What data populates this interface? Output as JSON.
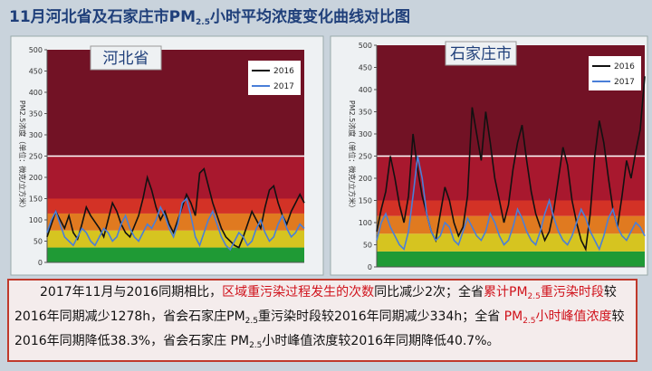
{
  "header": {
    "title": [
      {
        "text": "11月河北省及石家庄市PM",
        "sub": false
      },
      {
        "text": "2.5",
        "sub": true
      },
      {
        "text": "小时平均浓度变化曲线对比图",
        "sub": false
      }
    ]
  },
  "chart_data": [
    {
      "type": "line",
      "label": "河北省",
      "y_label": "PM2.5浓度（单位：微克/立方米）",
      "ylim": [
        0,
        500
      ],
      "yticks": [
        0,
        50,
        100,
        150,
        200,
        250,
        300,
        350,
        400,
        450,
        500
      ],
      "legend": "upper right",
      "bands": [
        {
          "from": 0,
          "to": 35,
          "color": "#1f9a35"
        },
        {
          "from": 35,
          "to": 75,
          "color": "#d6c420"
        },
        {
          "from": 75,
          "to": 115,
          "color": "#e07a20"
        },
        {
          "from": 115,
          "to": 150,
          "color": "#d33226"
        },
        {
          "from": 150,
          "to": 250,
          "color": "#a8182e"
        },
        {
          "from": 250,
          "to": 500,
          "color": "#721225"
        }
      ],
      "series": [
        {
          "name": "2016",
          "color": "#111111",
          "values": [
            60,
            90,
            120,
            100,
            80,
            110,
            70,
            55,
            90,
            130,
            110,
            95,
            80,
            60,
            100,
            140,
            120,
            90,
            70,
            60,
            85,
            110,
            150,
            200,
            170,
            130,
            100,
            120,
            90,
            70,
            100,
            130,
            160,
            140,
            110,
            210,
            220,
            180,
            140,
            110,
            80,
            60,
            50,
            40,
            35,
            60,
            90,
            120,
            100,
            80,
            130,
            170,
            180,
            140,
            110,
            90,
            120,
            140,
            160,
            140
          ]
        },
        {
          "name": "2017",
          "color": "#4a7fd8",
          "values": [
            70,
            100,
            120,
            90,
            60,
            50,
            40,
            60,
            80,
            70,
            50,
            40,
            60,
            80,
            70,
            50,
            60,
            90,
            110,
            80,
            60,
            50,
            70,
            90,
            80,
            100,
            130,
            110,
            80,
            60,
            90,
            140,
            150,
            110,
            60,
            40,
            70,
            100,
            120,
            90,
            60,
            40,
            30,
            50,
            70,
            60,
            40,
            50,
            80,
            100,
            70,
            50,
            60,
            90,
            110,
            80,
            60,
            70,
            90,
            80
          ]
        }
      ]
    },
    {
      "type": "line",
      "label": "石家庄市",
      "y_label": "PM2.5浓度（单位：微克/立方米）",
      "ylim": [
        0,
        500
      ],
      "yticks": [
        0,
        50,
        100,
        150,
        200,
        250,
        300,
        350,
        400,
        450,
        500
      ],
      "legend": "upper right",
      "bands": [
        {
          "from": 0,
          "to": 35,
          "color": "#1f9a35"
        },
        {
          "from": 35,
          "to": 75,
          "color": "#d6c420"
        },
        {
          "from": 75,
          "to": 115,
          "color": "#e07a20"
        },
        {
          "from": 115,
          "to": 150,
          "color": "#d33226"
        },
        {
          "from": 150,
          "to": 250,
          "color": "#a8182e"
        },
        {
          "from": 250,
          "to": 500,
          "color": "#721225"
        }
      ],
      "series": [
        {
          "name": "2016",
          "color": "#111111",
          "values": [
            80,
            130,
            170,
            250,
            200,
            140,
            100,
            160,
            300,
            220,
            160,
            120,
            80,
            60,
            120,
            180,
            150,
            100,
            70,
            90,
            160,
            360,
            300,
            240,
            350,
            280,
            200,
            150,
            100,
            140,
            220,
            280,
            320,
            240,
            170,
            120,
            90,
            60,
            80,
            130,
            200,
            270,
            230,
            150,
            100,
            60,
            40,
            120,
            250,
            330,
            280,
            200,
            130,
            90,
            160,
            240,
            200,
            260,
            310,
            430
          ]
        },
        {
          "name": "2017",
          "color": "#4a7fd8",
          "values": [
            60,
            100,
            120,
            90,
            70,
            50,
            40,
            80,
            160,
            250,
            200,
            120,
            80,
            60,
            70,
            100,
            90,
            60,
            50,
            80,
            110,
            90,
            70,
            60,
            80,
            120,
            100,
            70,
            50,
            60,
            90,
            130,
            110,
            80,
            60,
            50,
            80,
            120,
            150,
            110,
            80,
            60,
            50,
            70,
            100,
            130,
            110,
            80,
            60,
            40,
            70,
            110,
            130,
            90,
            70,
            60,
            80,
            100,
            90,
            70
          ]
        }
      ]
    }
  ],
  "note": {
    "runs": [
      {
        "text": "2017年11月与2016同期相比，",
        "color": "#111111",
        "sub": false
      },
      {
        "text": "区域重污染过程发生的次数",
        "color": "#d0121b",
        "sub": false
      },
      {
        "text": "同比减少2次；全省",
        "color": "#111111",
        "sub": false
      },
      {
        "text": "累计PM",
        "color": "#d0121b",
        "sub": false
      },
      {
        "text": "2.5",
        "color": "#d0121b",
        "sub": true
      },
      {
        "text": "重污染时段",
        "color": "#d0121b",
        "sub": false
      },
      {
        "text": "较2016年同期减少1278h，省会石家庄PM",
        "color": "#111111",
        "sub": false
      },
      {
        "text": "2.5",
        "color": "#111111",
        "sub": true
      },
      {
        "text": "重污染时段较2016年同期减少334h；全省 ",
        "color": "#111111",
        "sub": false
      },
      {
        "text": "PM",
        "color": "#d0121b",
        "sub": false
      },
      {
        "text": "2.5",
        "color": "#d0121b",
        "sub": true
      },
      {
        "text": "小时峰值浓度",
        "color": "#d0121b",
        "sub": false
      },
      {
        "text": "较2016年同期降低38.3%，省会石家庄 PM",
        "color": "#111111",
        "sub": false
      },
      {
        "text": "2.5",
        "color": "#111111",
        "sub": true
      },
      {
        "text": "小时峰值浓度较2016年同期降低40.7%。",
        "color": "#111111",
        "sub": false
      }
    ]
  }
}
